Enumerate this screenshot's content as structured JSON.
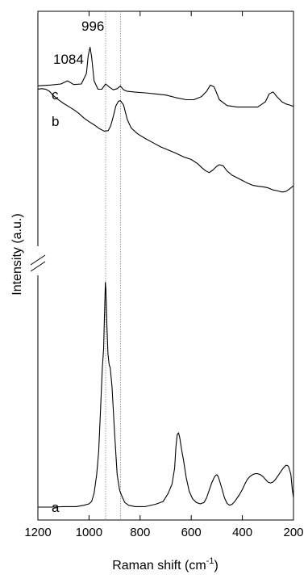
{
  "chart_data": {
    "type": "line",
    "xlabel": "Raman shift (cm",
    "xlabel_superscript": "-1",
    "xlabel_close": ")",
    "ylabel": "Intensity (a.u.)",
    "xlim": [
      1200,
      200
    ],
    "x_reversed": true,
    "x_ticks": [
      1200,
      1000,
      800,
      600,
      400,
      200
    ],
    "x_tick_labels": [
      "1200",
      "1000",
      "800",
      "600",
      "400",
      "200"
    ],
    "y_ticks_visible": false,
    "y_axis_break": true,
    "reference_lines_x": [
      935,
      877
    ],
    "annotations": [
      {
        "text": "996"
      },
      {
        "text": "1084"
      }
    ],
    "series": [
      {
        "name": "c",
        "x": [
          1200,
          1150,
          1110,
          1084,
          1060,
          1030,
          1010,
          1003,
          996,
          990,
          980,
          965,
          950,
          935,
          920,
          905,
          890,
          877,
          865,
          850,
          820,
          780,
          740,
          700,
          660,
          620,
          590,
          560,
          540,
          525,
          510,
          490,
          460,
          420,
          380,
          340,
          310,
          295,
          280,
          265,
          245,
          230,
          215,
          205,
          200
        ],
        "y": [
          0.82,
          0.9,
          1.0,
          1.3,
          0.95,
          1.0,
          2.0,
          3.7,
          4.5,
          3.6,
          1.3,
          0.5,
          0.5,
          1.0,
          0.7,
          0.45,
          0.55,
          0.8,
          0.45,
          0.3,
          0.22,
          0.15,
          0.05,
          -0.05,
          -0.3,
          -0.5,
          -0.5,
          -0.2,
          0.3,
          0.9,
          0.7,
          -0.5,
          -1.05,
          -1.2,
          -1.2,
          -1.2,
          -0.7,
          0.05,
          0.25,
          -0.2,
          -0.7,
          -0.9,
          -1.0,
          -1.1,
          -1.1
        ]
      },
      {
        "name": "b",
        "x": [
          1200,
          1185,
          1170,
          1155,
          1140,
          1120,
          1100,
          1080,
          1060,
          1040,
          1020,
          1000,
          980,
          960,
          940,
          925,
          915,
          905,
          895,
          885,
          877,
          865,
          850,
          835,
          810,
          780,
          750,
          720,
          690,
          660,
          630,
          600,
          575,
          560,
          545,
          530,
          515,
          500,
          490,
          475,
          460,
          440,
          420,
          400,
          380,
          360,
          340,
          320,
          300,
          280,
          260,
          245,
          230,
          215,
          200
        ],
        "y": [
          3.2,
          3.25,
          3.2,
          3.0,
          2.6,
          2.2,
          1.85,
          1.55,
          1.25,
          0.9,
          0.45,
          0.1,
          -0.2,
          -0.55,
          -0.8,
          -0.75,
          -0.3,
          0.6,
          1.6,
          2.05,
          2.1,
          1.7,
          0.3,
          -0.5,
          -1.05,
          -1.5,
          -1.9,
          -2.3,
          -2.6,
          -2.9,
          -3.25,
          -3.5,
          -3.9,
          -4.25,
          -4.55,
          -4.75,
          -4.5,
          -4.15,
          -4.0,
          -4.1,
          -4.6,
          -5.0,
          -5.25,
          -5.5,
          -5.75,
          -5.95,
          -6.05,
          -6.1,
          -6.2,
          -6.4,
          -6.5,
          -6.6,
          -6.55,
          -6.3,
          -6.0
        ]
      },
      {
        "name": "a",
        "x": [
          1200,
          1150,
          1100,
          1050,
          1020,
          1000,
          990,
          980,
          970,
          962,
          955,
          948,
          943,
          939,
          936,
          934,
          930,
          926,
          921,
          917,
          910,
          900,
          890,
          880,
          870,
          860,
          845,
          820,
          780,
          740,
          710,
          690,
          675,
          665,
          660,
          655,
          650,
          645,
          638,
          630,
          620,
          608,
          595,
          580,
          565,
          550,
          540,
          530,
          520,
          510,
          505,
          500,
          495,
          490,
          480,
          470,
          460,
          450,
          440,
          430,
          420,
          410,
          400,
          390,
          380,
          370,
          360,
          350,
          340,
          330,
          320,
          310,
          300,
          290,
          280,
          270,
          260,
          250,
          240,
          230,
          225,
          220,
          215,
          210,
          205,
          200
        ],
        "y": [
          0.0,
          0.0,
          0.05,
          0.05,
          0.2,
          0.35,
          0.6,
          1.5,
          3.5,
          6.0,
          10.5,
          15.0,
          17.0,
          21.0,
          24.2,
          23.5,
          19.5,
          16.5,
          15.3,
          15.0,
          13.0,
          8.0,
          3.5,
          1.8,
          1.1,
          0.5,
          0.2,
          0.05,
          0.05,
          0.3,
          0.6,
          1.5,
          2.5,
          4.2,
          6.5,
          7.8,
          8.0,
          7.5,
          6.2,
          5.0,
          3.2,
          1.7,
          0.9,
          0.5,
          0.35,
          0.5,
          1.0,
          1.8,
          2.6,
          3.2,
          3.4,
          3.5,
          3.3,
          2.9,
          2.0,
          1.0,
          0.4,
          0.2,
          0.3,
          0.6,
          1.0,
          1.4,
          1.9,
          2.5,
          3.0,
          3.3,
          3.5,
          3.6,
          3.6,
          3.5,
          3.3,
          3.0,
          2.7,
          2.6,
          2.7,
          3.0,
          3.4,
          3.8,
          4.2,
          4.5,
          4.5,
          4.4,
          4.0,
          3.5,
          2.0,
          1.0
        ]
      }
    ]
  }
}
